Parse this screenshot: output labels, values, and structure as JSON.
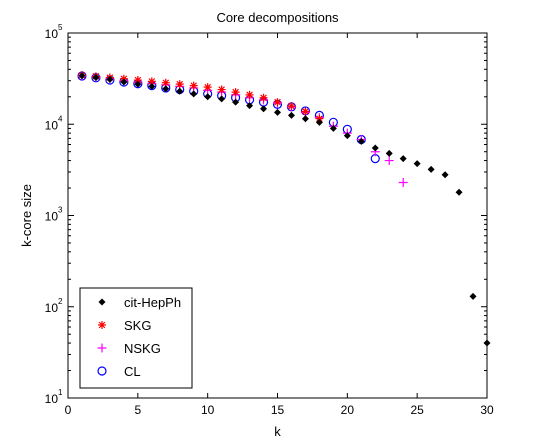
{
  "chart_data": {
    "type": "scatter",
    "title": "Core decompositions",
    "xlabel": "k",
    "ylabel": "k-core size",
    "xlim": [
      0,
      30
    ],
    "ylim": [
      10,
      100000
    ],
    "yscale": "log",
    "x_ticks": [
      "0",
      "5",
      "10",
      "15",
      "20",
      "25",
      "30"
    ],
    "y_ticks": [
      {
        "base": "10",
        "exp": "1"
      },
      {
        "base": "10",
        "exp": "2"
      },
      {
        "base": "10",
        "exp": "3"
      },
      {
        "base": "10",
        "exp": "4"
      },
      {
        "base": "10",
        "exp": "5"
      }
    ],
    "legend_position": "bottom-left",
    "series": [
      {
        "name": "cit-HepPh",
        "marker": "dot",
        "color": "#000000",
        "x": [
          1,
          2,
          3,
          4,
          5,
          6,
          7,
          8,
          9,
          10,
          11,
          12,
          13,
          14,
          15,
          16,
          17,
          18,
          19,
          20,
          21,
          22,
          23,
          24,
          25,
          26,
          27,
          28,
          29,
          30
        ],
        "y": [
          34000,
          32500,
          31000,
          29000,
          27500,
          26000,
          24500,
          23000,
          21500,
          20000,
          19000,
          17500,
          16000,
          14800,
          13500,
          12500,
          11500,
          10500,
          9000,
          7500,
          6500,
          5500,
          4800,
          4200,
          3700,
          3200,
          2800,
          1800,
          130,
          40
        ]
      },
      {
        "name": "SKG",
        "marker": "asterisk",
        "color": "#ff0000",
        "x": [
          1,
          2,
          3,
          4,
          5,
          6,
          7,
          8,
          9,
          10,
          11,
          12,
          13,
          14,
          15,
          16,
          17,
          18
        ],
        "y": [
          34500,
          33500,
          32500,
          31500,
          30500,
          29500,
          28500,
          27500,
          26500,
          25500,
          24000,
          22500,
          21000,
          19500,
          17500,
          15800,
          13800,
          11500
        ]
      },
      {
        "name": "NSKG",
        "marker": "plus",
        "color": "#ff00ff",
        "x": [
          1,
          2,
          3,
          4,
          5,
          6,
          7,
          8,
          9,
          10,
          11,
          12,
          13,
          14,
          15,
          16,
          17,
          18,
          19,
          20,
          21,
          22,
          23,
          24
        ],
        "y": [
          34000,
          32800,
          31500,
          30000,
          29000,
          28000,
          27000,
          26000,
          25000,
          23500,
          22500,
          21000,
          19500,
          18500,
          17000,
          15500,
          13500,
          11800,
          9500,
          8000,
          6800,
          5000,
          4000,
          2300
        ]
      },
      {
        "name": "CL",
        "marker": "circle",
        "color": "#0000ff",
        "x": [
          1,
          2,
          3,
          4,
          5,
          6,
          7,
          8,
          9,
          10,
          11,
          12,
          13,
          14,
          15,
          16,
          17,
          18,
          19,
          20,
          21,
          22
        ],
        "y": [
          33800,
          32300,
          30500,
          29000,
          27800,
          26500,
          25000,
          24000,
          23000,
          21500,
          20500,
          19500,
          18500,
          17500,
          16500,
          15500,
          14000,
          12500,
          10500,
          8800,
          6800,
          4200
        ]
      }
    ]
  }
}
